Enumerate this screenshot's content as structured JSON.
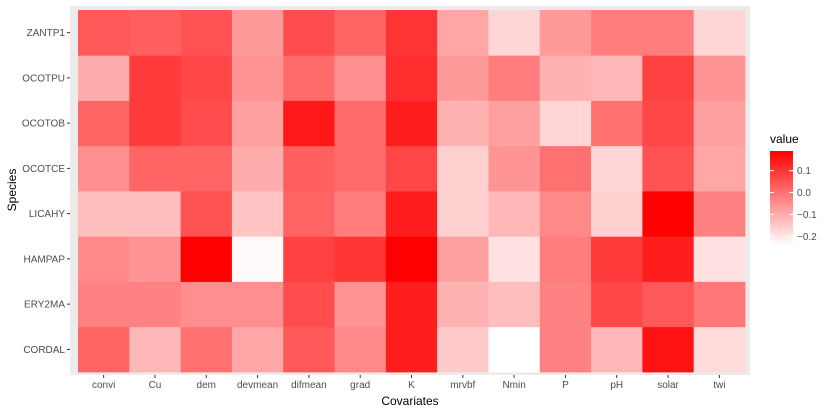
{
  "chart_data": {
    "type": "heatmap",
    "xlabel": "Covariates",
    "ylabel": "Species",
    "x_categories": [
      "convi",
      "Cu",
      "dem",
      "devmean",
      "difmean",
      "grad",
      "K",
      "mrvbf",
      "Nmin",
      "P",
      "pH",
      "solar",
      "twi"
    ],
    "y_categories": [
      "CORDAL",
      "ERY2MA",
      "HAMPAP",
      "LICAHY",
      "OCOTCE",
      "OCOTOB",
      "OCOTPU",
      "ZANTP1"
    ],
    "values": [
      [
        0.02,
        -0.12,
        -0.0,
        -0.09,
        0.04,
        -0.04,
        0.14,
        -0.15,
        -0.24,
        -0.03,
        -0.12,
        0.16,
        -0.18
      ],
      [
        -0.03,
        -0.03,
        -0.05,
        -0.05,
        0.06,
        -0.06,
        0.14,
        -0.11,
        -0.13,
        -0.03,
        0.07,
        0.04,
        -0.01
      ],
      [
        -0.04,
        -0.06,
        0.19,
        -0.23,
        0.08,
        0.1,
        0.19,
        -0.08,
        -0.19,
        -0.02,
        0.09,
        0.14,
        -0.19
      ],
      [
        -0.13,
        -0.13,
        0.05,
        -0.14,
        0.02,
        -0.02,
        0.14,
        -0.16,
        -0.12,
        -0.04,
        -0.16,
        0.19,
        -0.03
      ],
      [
        -0.05,
        0.02,
        0.02,
        -0.1,
        0.03,
        0.01,
        0.07,
        -0.16,
        -0.06,
        0.0,
        -0.17,
        0.05,
        -0.09
      ],
      [
        0.02,
        0.09,
        0.06,
        -0.08,
        0.15,
        0.01,
        0.14,
        -0.11,
        -0.08,
        -0.17,
        0.0,
        0.07,
        -0.08
      ],
      [
        -0.1,
        0.09,
        0.07,
        -0.06,
        0.01,
        -0.05,
        0.11,
        -0.07,
        -0.02,
        -0.11,
        -0.12,
        0.08,
        -0.06
      ],
      [
        0.04,
        0.03,
        0.05,
        -0.07,
        0.06,
        0.02,
        0.1,
        -0.09,
        -0.17,
        -0.07,
        -0.02,
        -0.02,
        -0.17
      ]
    ],
    "legend": {
      "title": "value",
      "breaks": [
        0.1,
        0.0,
        -0.1,
        -0.2
      ],
      "break_labels": [
        "0.1",
        "0.0",
        "−0.1",
        "−0.2"
      ],
      "limits": [
        -0.24,
        0.19
      ],
      "placement": "right"
    },
    "colors": {
      "low": "#ffffff",
      "high": "#ff0000",
      "panel_background": "#ebebeb"
    },
    "grid": false
  }
}
